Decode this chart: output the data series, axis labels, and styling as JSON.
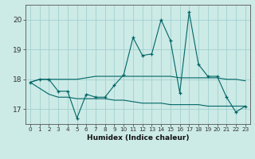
{
  "xlabel": "Humidex (Indice chaleur)",
  "x": [
    0,
    1,
    2,
    3,
    4,
    5,
    6,
    7,
    8,
    9,
    10,
    11,
    12,
    13,
    14,
    15,
    16,
    17,
    18,
    19,
    20,
    21,
    22,
    23
  ],
  "y_main": [
    17.9,
    18.0,
    18.0,
    17.6,
    17.6,
    16.7,
    17.5,
    17.4,
    17.4,
    17.8,
    18.15,
    19.4,
    18.8,
    18.85,
    20.0,
    19.3,
    17.55,
    20.25,
    18.5,
    18.1,
    18.1,
    17.4,
    16.9,
    17.1
  ],
  "y_flat": [
    17.9,
    18.0,
    18.0,
    18.0,
    18.0,
    18.0,
    18.05,
    18.1,
    18.1,
    18.1,
    18.1,
    18.1,
    18.1,
    18.1,
    18.1,
    18.1,
    18.05,
    18.05,
    18.05,
    18.05,
    18.05,
    18.0,
    18.0,
    17.95
  ],
  "y_low": [
    17.9,
    17.7,
    17.5,
    17.4,
    17.4,
    17.35,
    17.35,
    17.35,
    17.35,
    17.3,
    17.3,
    17.25,
    17.2,
    17.2,
    17.2,
    17.15,
    17.15,
    17.15,
    17.15,
    17.1,
    17.1,
    17.1,
    17.1,
    17.1
  ],
  "bg_color": "#cceae6",
  "line_color": "#006666",
  "grid_color": "#99cccc",
  "ylim": [
    16.5,
    20.5
  ],
  "yticks": [
    17,
    18,
    19,
    20
  ],
  "xticks": [
    0,
    1,
    2,
    3,
    4,
    5,
    6,
    7,
    8,
    9,
    10,
    11,
    12,
    13,
    14,
    15,
    16,
    17,
    18,
    19,
    20,
    21,
    22,
    23
  ]
}
